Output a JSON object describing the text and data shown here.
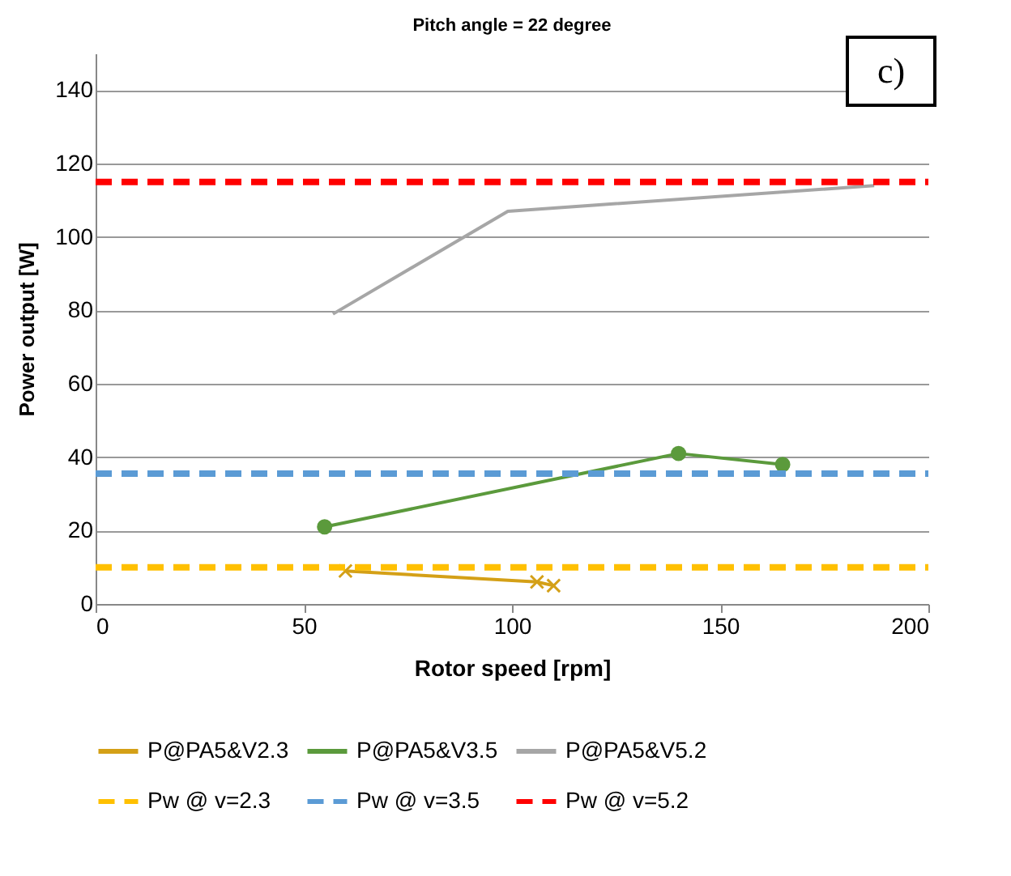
{
  "chart_data": {
    "type": "line",
    "title": "Pitch angle = 22 degree",
    "xlabel": "Rotor speed [rpm]",
    "ylabel": "Power output [W]",
    "annotations": [
      "c)"
    ],
    "series": [
      {
        "name": "P@PA5&V2.3",
        "color": "#d4a017",
        "marker": "cross",
        "line_style": "solid",
        "x": [
          60,
          106,
          110
        ],
        "values": [
          9,
          6,
          5
        ]
      },
      {
        "name": "P@PA5&V3.5",
        "color": "#5b9a3c",
        "marker": "circle",
        "line_style": "solid",
        "x": [
          55,
          140,
          165
        ],
        "values": [
          21,
          41,
          38
        ]
      },
      {
        "name": "P@PA5&V5.2",
        "color": "#a6a6a6",
        "marker": "none",
        "line_style": "solid",
        "x": [
          57,
          99,
          187
        ],
        "values": [
          79,
          107,
          114
        ]
      },
      {
        "name": "Pw @ v=2.3",
        "color": "#ffc000",
        "marker": "none",
        "line_style": "dashed",
        "x": [
          0,
          200
        ],
        "values": [
          10,
          10
        ]
      },
      {
        "name": "Pw @ v=3.5",
        "color": "#5b9bd5",
        "marker": "none",
        "line_style": "dashed",
        "x": [
          0,
          200
        ],
        "values": [
          35.5,
          35.5
        ]
      },
      {
        "name": "Pw @ v=5.2",
        "color": "#ff0000",
        "marker": "none",
        "line_style": "dashed",
        "x": [
          0,
          200
        ],
        "values": [
          115,
          115
        ]
      }
    ],
    "xlim": [
      0,
      200
    ],
    "xticks": [
      0,
      50,
      100,
      150,
      200
    ],
    "ylim": [
      0,
      150
    ],
    "yticks": [
      0,
      20,
      40,
      60,
      80,
      100,
      120,
      140
    ],
    "grid": "y",
    "legend": "bottom"
  }
}
